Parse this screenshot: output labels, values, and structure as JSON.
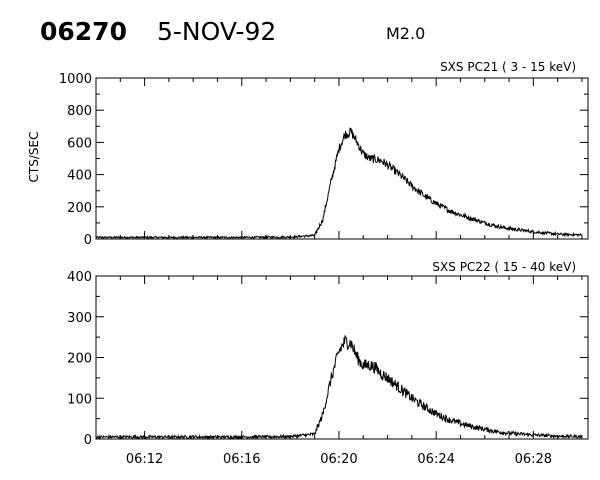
{
  "header": {
    "event_id": "06270",
    "date": "5-NOV-92",
    "flare_class": "M2.0"
  },
  "chart_data": [
    {
      "type": "line",
      "title": "SXS PC21  (  3 - 15 keV)",
      "ylabel": "CTS/SEC",
      "xlabel": "",
      "ylim": [
        0,
        1000
      ],
      "xlim": [
        "06:10:00",
        "06:30:15"
      ],
      "yticks": [
        0,
        200,
        400,
        600,
        800,
        1000
      ],
      "xticks": [
        "06:12",
        "06:16",
        "06:20",
        "06:24",
        "06:28"
      ],
      "grid": false,
      "series": [
        {
          "x": [
            "06:10:00",
            "06:12:00",
            "06:14:00",
            "06:16:00",
            "06:18:00",
            "06:19:00",
            "06:19:20",
            "06:19:40",
            "06:20:00",
            "06:20:15",
            "06:20:30",
            "06:20:45",
            "06:21:00",
            "06:21:15",
            "06:21:30",
            "06:21:45",
            "06:22:00",
            "06:22:30",
            "06:23:00",
            "06:23:30",
            "06:24:00",
            "06:24:30",
            "06:25:00",
            "06:25:30",
            "06:26:00",
            "06:26:30",
            "06:27:00",
            "06:28:00",
            "06:29:00",
            "06:30:00"
          ],
          "y": [
            10,
            10,
            10,
            10,
            12,
            22,
            120,
            350,
            560,
            650,
            665,
            600,
            530,
            500,
            495,
            485,
            460,
            400,
            330,
            270,
            220,
            180,
            150,
            125,
            100,
            80,
            65,
            45,
            30,
            25
          ]
        }
      ]
    },
    {
      "type": "line",
      "title": "SXS PC22  ( 15 - 40 keV)",
      "ylabel": "",
      "xlabel": "",
      "ylim": [
        0,
        400
      ],
      "xlim": [
        "06:10:00",
        "06:30:15"
      ],
      "yticks": [
        0,
        100,
        200,
        300,
        400
      ],
      "xticks": [
        "06:12",
        "06:16",
        "06:20",
        "06:24",
        "06:28"
      ],
      "grid": false,
      "series": [
        {
          "x": [
            "06:10:00",
            "06:12:00",
            "06:14:00",
            "06:16:00",
            "06:18:00",
            "06:19:00",
            "06:19:20",
            "06:19:40",
            "06:20:00",
            "06:20:15",
            "06:20:30",
            "06:20:45",
            "06:21:00",
            "06:21:15",
            "06:21:30",
            "06:21:45",
            "06:22:00",
            "06:22:30",
            "06:23:00",
            "06:23:30",
            "06:24:00",
            "06:24:30",
            "06:25:00",
            "06:25:30",
            "06:26:00",
            "06:26:30",
            "06:27:00",
            "06:28:00",
            "06:29:00",
            "06:30:00"
          ],
          "y": [
            5,
            5,
            5,
            5,
            6,
            12,
            60,
            145,
            215,
            240,
            235,
            200,
            180,
            182,
            175,
            160,
            150,
            125,
            100,
            80,
            62,
            48,
            38,
            30,
            24,
            18,
            14,
            10,
            7,
            6
          ]
        }
      ]
    }
  ]
}
